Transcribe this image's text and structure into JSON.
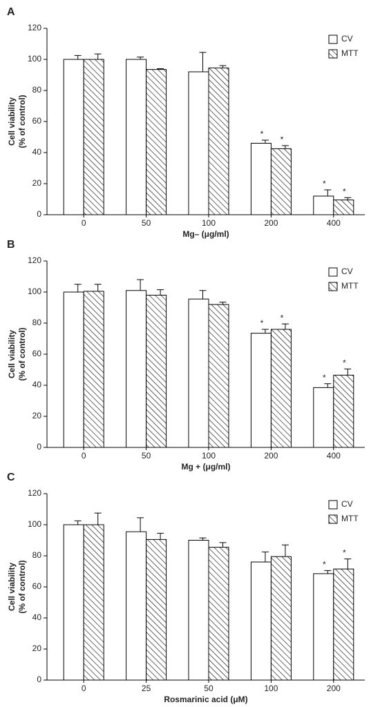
{
  "chart_data": [
    {
      "type": "bar",
      "panel": "A",
      "xlabel": "Mg– (μg/ml)",
      "ylabel": [
        "Cell viability",
        "(% of control)"
      ],
      "categories": [
        "0",
        "50",
        "100",
        "200",
        "400"
      ],
      "ylim": [
        0,
        120
      ],
      "yticks": [
        0,
        20,
        40,
        60,
        80,
        100,
        120
      ],
      "legend": "upper right",
      "series": [
        {
          "name": "CV",
          "color": "#000000",
          "hatch": false,
          "values": [
            100,
            100,
            92,
            46,
            12
          ],
          "errors": [
            2.5,
            1.5,
            12.5,
            2,
            4
          ],
          "significance": [
            null,
            null,
            null,
            "*",
            "*"
          ]
        },
        {
          "name": "MTT",
          "color": "#000000",
          "hatch": true,
          "values": [
            100,
            93.5,
            94.5,
            42.5,
            9.5
          ],
          "errors": [
            3.5,
            0.5,
            1.5,
            2,
            1.5
          ],
          "significance": [
            null,
            null,
            null,
            "*",
            "*"
          ]
        }
      ]
    },
    {
      "type": "bar",
      "panel": "B",
      "xlabel": "Mg + (μg/ml)",
      "ylabel": [
        "Cell viability",
        "(% of control)"
      ],
      "categories": [
        "0",
        "50",
        "100",
        "200",
        "400"
      ],
      "ylim": [
        0,
        120
      ],
      "yticks": [
        0,
        20,
        40,
        60,
        80,
        100,
        120
      ],
      "legend": "upper right",
      "series": [
        {
          "name": "CV",
          "color": "#000000",
          "hatch": false,
          "values": [
            100,
            101,
            95.5,
            73.5,
            38.5
          ],
          "errors": [
            5,
            7,
            5.5,
            2.5,
            2.5
          ],
          "significance": [
            null,
            null,
            null,
            "*",
            "*"
          ]
        },
        {
          "name": "MTT",
          "color": "#000000",
          "hatch": true,
          "values": [
            100.5,
            98,
            92,
            76,
            46.5
          ],
          "errors": [
            4.5,
            3.5,
            1.5,
            3.5,
            4
          ],
          "significance": [
            null,
            null,
            null,
            "*",
            "*"
          ]
        }
      ]
    },
    {
      "type": "bar",
      "panel": "C",
      "xlabel": "Rosmarinic acid (μM)",
      "ylabel": [
        "Cell viability",
        "(% of control)"
      ],
      "categories": [
        "0",
        "25",
        "50",
        "100",
        "200"
      ],
      "ylim": [
        0,
        120
      ],
      "yticks": [
        0,
        20,
        40,
        60,
        80,
        100,
        120
      ],
      "legend": "upper right",
      "series": [
        {
          "name": "CV",
          "color": "#000000",
          "hatch": false,
          "values": [
            100,
            95.5,
            90,
            76,
            68.5
          ],
          "errors": [
            2.5,
            9,
            1.5,
            6.5,
            2
          ],
          "significance": [
            null,
            null,
            null,
            null,
            "*"
          ]
        },
        {
          "name": "MTT",
          "color": "#000000",
          "hatch": true,
          "values": [
            100,
            90.5,
            85.5,
            79.5,
            71.5
          ],
          "errors": [
            7.5,
            4,
            3,
            7.5,
            6.5
          ],
          "significance": [
            null,
            null,
            null,
            null,
            "*"
          ]
        }
      ]
    }
  ]
}
